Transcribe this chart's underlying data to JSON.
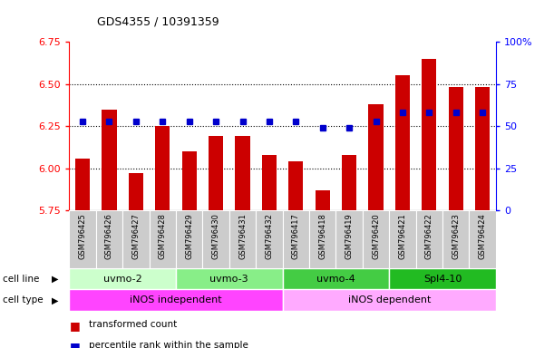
{
  "title": "GDS4355 / 10391359",
  "samples": [
    "GSM796425",
    "GSM796426",
    "GSM796427",
    "GSM796428",
    "GSM796429",
    "GSM796430",
    "GSM796431",
    "GSM796432",
    "GSM796417",
    "GSM796418",
    "GSM796419",
    "GSM796420",
    "GSM796421",
    "GSM796422",
    "GSM796423",
    "GSM796424"
  ],
  "red_bars": [
    6.06,
    6.35,
    5.97,
    6.25,
    6.1,
    6.19,
    6.19,
    6.08,
    6.04,
    5.87,
    6.08,
    6.38,
    6.55,
    6.65,
    6.48,
    6.48
  ],
  "blue_dots_pct": [
    53,
    53,
    53,
    53,
    53,
    53,
    53,
    53,
    53,
    49,
    49,
    53,
    58,
    58,
    58,
    58
  ],
  "ymin": 5.75,
  "ymax": 6.75,
  "yticks_left": [
    5.75,
    6.0,
    6.25,
    6.5,
    6.75
  ],
  "yticks_right": [
    0,
    25,
    50,
    75,
    100
  ],
  "bar_color": "#CC0000",
  "dot_color": "#0000CC",
  "cell_lines": [
    {
      "label": "uvmo-2",
      "start": 0,
      "end": 4,
      "color": "#ccffcc"
    },
    {
      "label": "uvmo-3",
      "start": 4,
      "end": 8,
      "color": "#88ee88"
    },
    {
      "label": "uvmo-4",
      "start": 8,
      "end": 12,
      "color": "#44cc44"
    },
    {
      "label": "Spl4-10",
      "start": 12,
      "end": 16,
      "color": "#22bb22"
    }
  ],
  "cell_types": [
    {
      "label": "iNOS independent",
      "start": 0,
      "end": 8,
      "color": "#ff44ff"
    },
    {
      "label": "iNOS dependent",
      "start": 8,
      "end": 16,
      "color": "#ffaaff"
    }
  ],
  "legend_red": "transformed count",
  "legend_blue": "percentile rank within the sample",
  "gridlines": [
    6.0,
    6.25,
    6.5
  ]
}
